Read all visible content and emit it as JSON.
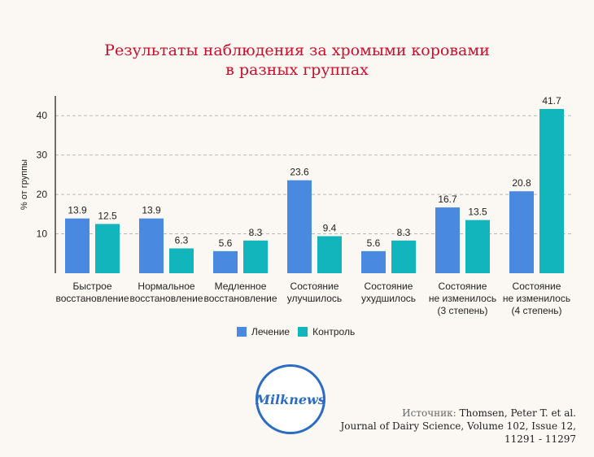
{
  "title": {
    "line1": "Результаты наблюдения за хромыми коровами",
    "line2": "в разных группах"
  },
  "legend": [
    {
      "label": "Лечение",
      "color": "#4a89e0"
    },
    {
      "label": "Контроль",
      "color": "#12b5bb"
    }
  ],
  "logo": {
    "text": "Milknews"
  },
  "source": {
    "label": "Источник:",
    "line1": "Thomsen, Peter T. et al.",
    "line2": "Journal of Dairy Science, Volume 102, Issue 12,",
    "line3": "11291 - 11297"
  },
  "chart_data": {
    "type": "bar",
    "ylabel": "% от группы",
    "ylim": [
      0,
      45
    ],
    "yticks": [
      10,
      20,
      30,
      40
    ],
    "grid": true,
    "legend_position": "bottom",
    "categories": [
      [
        "Быстрое",
        "восстановление"
      ],
      [
        "Нормальное",
        "восстановление"
      ],
      [
        "Медленное",
        "восстановление"
      ],
      [
        "Состояние",
        "улучшилось"
      ],
      [
        "Состояние",
        "ухудшилось"
      ],
      [
        "Состояние",
        "не изменилось",
        "(3 степень)"
      ],
      [
        "Состояние",
        "не изменилось",
        "(4 степень)"
      ]
    ],
    "series": [
      {
        "name": "Лечение",
        "color": "#4a89e0",
        "values": [
          13.9,
          13.9,
          5.6,
          23.6,
          5.6,
          16.7,
          20.8
        ]
      },
      {
        "name": "Контроль",
        "color": "#12b5bb",
        "values": [
          12.5,
          6.3,
          8.3,
          9.4,
          8.3,
          13.5,
          41.7
        ]
      }
    ]
  }
}
